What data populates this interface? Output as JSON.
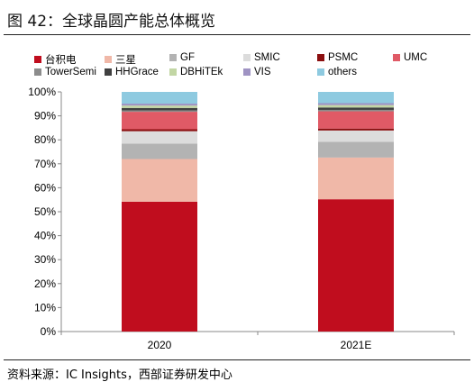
{
  "title": "图 42：全球晶圆产能总体概览",
  "source": "资料来源：IC Insights，西部证券研发中心",
  "chart_data": {
    "type": "bar",
    "stacked": true,
    "categories": [
      "2020",
      "2021E"
    ],
    "ylim": [
      0,
      100
    ],
    "yticks": [
      "0%",
      "10%",
      "20%",
      "30%",
      "40%",
      "50%",
      "60%",
      "70%",
      "80%",
      "90%",
      "100%"
    ],
    "legend_placement": "top",
    "series": [
      {
        "name": "台积电",
        "color": "#c00d1e",
        "values": [
          54.2,
          55.2
        ]
      },
      {
        "name": "三星",
        "color": "#f0b8a8",
        "values": [
          17.8,
          17.4
        ]
      },
      {
        "name": "GF",
        "color": "#b3b3b3",
        "values": [
          6.4,
          6.6
        ]
      },
      {
        "name": "SMIC",
        "color": "#dcdcdc",
        "values": [
          5.2,
          4.7
        ]
      },
      {
        "name": "PSMC",
        "color": "#8b0f10",
        "values": [
          0.8,
          0.8
        ]
      },
      {
        "name": "UMC",
        "color": "#e05a66",
        "values": [
          7.3,
          7.2
        ]
      },
      {
        "name": "TowerSemi",
        "color": "#8c8c8c",
        "values": [
          0.6,
          0.6
        ]
      },
      {
        "name": "HHGrace",
        "color": "#404040",
        "values": [
          1.0,
          1.0
        ]
      },
      {
        "name": "DBHiTEk",
        "color": "#c2d6a4",
        "values": [
          1.0,
          1.0
        ]
      },
      {
        "name": "VIS",
        "color": "#9f93c3",
        "values": [
          0.8,
          0.8
        ]
      },
      {
        "name": "others",
        "color": "#8ecae0",
        "values": [
          4.9,
          4.7
        ]
      }
    ]
  }
}
